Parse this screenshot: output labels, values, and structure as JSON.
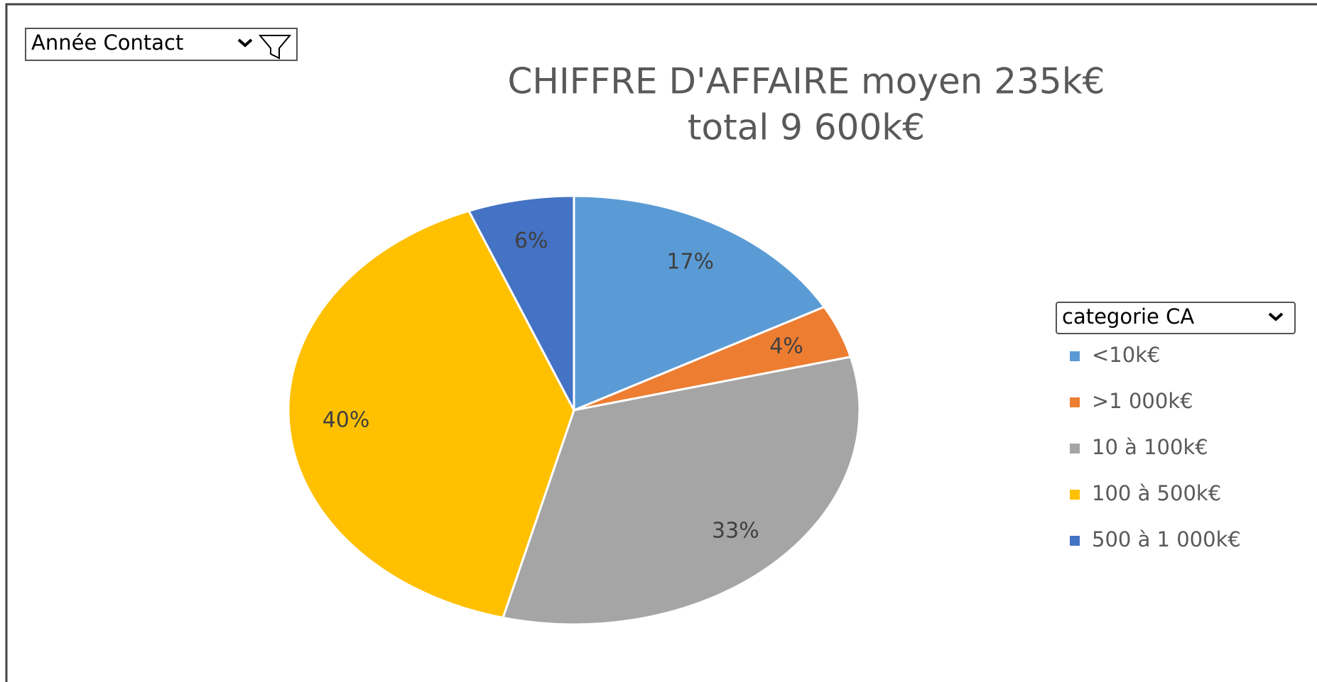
{
  "chart_data": {
    "type": "pie",
    "title": "CHIFFRE D'AFFAIRE moyen 235k€",
    "subtitle": "total 9 600k€",
    "filter_label": "Année Contact",
    "legend_title": "categorie CA",
    "categories": [
      "<10k€",
      ">1 000k€",
      "10 à 100k€",
      "100 à 500k€",
      "500 à 1 000k€"
    ],
    "values": [
      17,
      4,
      33,
      40,
      6
    ],
    "value_labels": [
      "17%",
      "4%",
      "33%",
      "40%",
      "6%"
    ],
    "colors": [
      "#5b9bd5",
      "#ed7d31",
      "#a5a5a5",
      "#ffc000",
      "#4472c4"
    ],
    "legend": "right"
  }
}
